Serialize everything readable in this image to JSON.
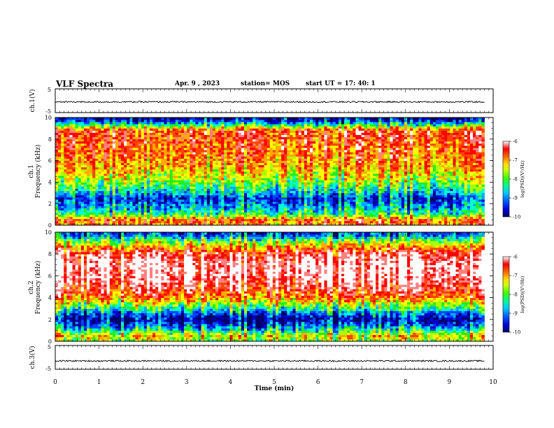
{
  "header": {
    "title": "VLF Spectra",
    "date": "Apr. 9 , 2023",
    "station": "station= MOS",
    "start": "start UT = 17: 40: 1"
  },
  "colors": {
    "colormap": [
      "#000066",
      "#0000cc",
      "#0044ff",
      "#00aaff",
      "#00ffcc",
      "#22ee22",
      "#aaff00",
      "#ffff00",
      "#ffaa00",
      "#ff4400",
      "#ff0000",
      "#ff8080",
      "#ffffff"
    ]
  },
  "chart_data": [
    {
      "type": "line",
      "title": "",
      "ylabel": "ch.1(V)",
      "ylim": [
        -5,
        5
      ],
      "yticks": [
        "5",
        "-5"
      ],
      "xlim": [
        0,
        10
      ],
      "series": [
        {
          "level": -0.5
        }
      ]
    },
    {
      "type": "heatmap",
      "ylabel_top": "ch.1",
      "ylabel": "Frequency (kHz)",
      "ylim": [
        0,
        10
      ],
      "yticks": [
        "0",
        "2",
        "4",
        "6",
        "8",
        "10"
      ],
      "xlim": [
        0,
        10
      ],
      "colorbar": {
        "label": "log(PSD)(V²/Hz)",
        "ticks": [
          "-6",
          "-7",
          "-8",
          "-9",
          "-10"
        ],
        "range": [
          -10,
          -6
        ]
      },
      "profile": [
        {
          "f": 0.1,
          "v": -7.2
        },
        {
          "f": 0.5,
          "v": -7.0
        },
        {
          "f": 1.0,
          "v": -8.3
        },
        {
          "f": 1.5,
          "v": -8.7
        },
        {
          "f": 2.0,
          "v": -9.0
        },
        {
          "f": 2.5,
          "v": -9.3
        },
        {
          "f": 3.0,
          "v": -8.7
        },
        {
          "f": 4.0,
          "v": -8.0
        },
        {
          "f": 5.0,
          "v": -7.5
        },
        {
          "f": 6.0,
          "v": -7.2
        },
        {
          "f": 7.0,
          "v": -7.0
        },
        {
          "f": 8.0,
          "v": -6.9
        },
        {
          "f": 8.8,
          "v": -6.8
        },
        {
          "f": 9.3,
          "v": -8.3
        },
        {
          "f": 9.8,
          "v": -9.5
        }
      ]
    },
    {
      "type": "heatmap",
      "ylabel_top": "ch.2",
      "ylabel": "Frequency (kHz)",
      "ylim": [
        0,
        10
      ],
      "yticks": [
        "0",
        "2",
        "4",
        "6",
        "8",
        "10"
      ],
      "xlim": [
        0,
        10
      ],
      "colorbar": {
        "label": "log(PSD)(V²/Hz)",
        "ticks": [
          "-6",
          "-7",
          "-8",
          "-9",
          "-10"
        ],
        "range": [
          -10,
          -6
        ]
      },
      "profile": [
        {
          "f": 0.1,
          "v": -8.0
        },
        {
          "f": 0.5,
          "v": -7.6
        },
        {
          "f": 1.0,
          "v": -8.5
        },
        {
          "f": 1.5,
          "v": -9.2
        },
        {
          "f": 2.0,
          "v": -9.7
        },
        {
          "f": 2.5,
          "v": -9.2
        },
        {
          "f": 3.0,
          "v": -8.5
        },
        {
          "f": 4.0,
          "v": -7.2
        },
        {
          "f": 5.0,
          "v": -6.6
        },
        {
          "f": 6.0,
          "v": -6.3
        },
        {
          "f": 7.0,
          "v": -6.2
        },
        {
          "f": 8.0,
          "v": -6.5
        },
        {
          "f": 8.8,
          "v": -7.5
        },
        {
          "f": 9.3,
          "v": -8.3
        },
        {
          "f": 9.8,
          "v": -9.2
        }
      ]
    },
    {
      "type": "line",
      "title": "",
      "ylabel": "ch.3(V)",
      "ylim": [
        -5,
        5
      ],
      "yticks": [
        "5",
        "-5"
      ],
      "xlim": [
        0,
        10
      ],
      "xlabel": "Time (min)",
      "xticks": [
        "0",
        "1",
        "2",
        "3",
        "4",
        "5",
        "6",
        "7",
        "8",
        "9",
        "10"
      ],
      "series": [
        {
          "level": -1.5
        }
      ]
    }
  ]
}
